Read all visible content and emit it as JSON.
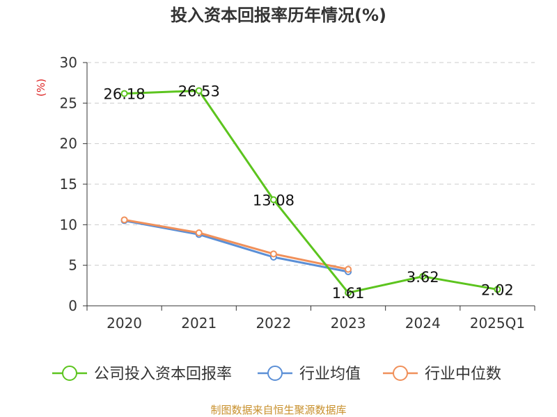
{
  "chart_data": {
    "type": "line",
    "title": "投入资本回报率历年情况(%)",
    "ylabel": "(%)",
    "xlabel": "",
    "categories": [
      "2020",
      "2021",
      "2022",
      "2023",
      "2024",
      "2025Q1"
    ],
    "ylim": [
      0,
      30
    ],
    "yticks": [
      0,
      5,
      10,
      15,
      20,
      25,
      30
    ],
    "grid": true,
    "legend_position": "bottom",
    "series": [
      {
        "name": "公司投入资本回报率",
        "color": "#5cc41e",
        "values": [
          26.18,
          26.53,
          13.08,
          1.61,
          3.62,
          2.02
        ],
        "labels": [
          "26.18",
          "26.53",
          "13.08",
          "1.61",
          "3.62",
          "2.02"
        ]
      },
      {
        "name": "行业均值",
        "color": "#5b8fd6",
        "values": [
          10.5,
          8.8,
          6.0,
          4.2,
          null,
          null
        ]
      },
      {
        "name": "行业中位数",
        "color": "#f0905a",
        "values": [
          10.6,
          9.0,
          6.4,
          4.5,
          null,
          null
        ]
      }
    ],
    "source": "制图数据来自恒生聚源数据库"
  }
}
